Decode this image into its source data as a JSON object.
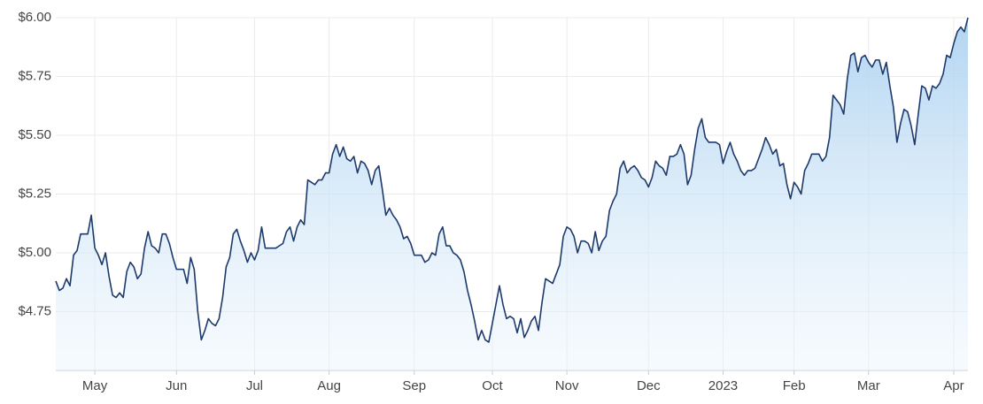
{
  "chart_data": {
    "type": "line",
    "values": [
      4.88,
      4.84,
      4.85,
      4.89,
      4.86,
      4.99,
      5.01,
      5.08,
      5.08,
      5.08,
      5.16,
      5.02,
      4.99,
      4.95,
      5.0,
      4.9,
      4.82,
      4.81,
      4.83,
      4.81,
      4.92,
      4.96,
      4.94,
      4.89,
      4.91,
      5.02,
      5.09,
      5.03,
      5.02,
      5.0,
      5.08,
      5.08,
      5.04,
      4.98,
      4.93,
      4.93,
      4.93,
      4.87,
      4.98,
      4.93,
      4.75,
      4.63,
      4.67,
      4.72,
      4.7,
      4.69,
      4.72,
      4.81,
      4.94,
      4.98,
      5.08,
      5.1,
      5.05,
      5.01,
      4.96,
      5.0,
      4.97,
      5.01,
      5.11,
      5.02,
      5.02,
      5.02,
      5.02,
      5.03,
      5.04,
      5.09,
      5.11,
      5.05,
      5.11,
      5.14,
      5.12,
      5.31,
      5.3,
      5.29,
      5.31,
      5.31,
      5.34,
      5.34,
      5.42,
      5.46,
      5.41,
      5.45,
      5.4,
      5.39,
      5.41,
      5.34,
      5.39,
      5.38,
      5.35,
      5.29,
      5.35,
      5.37,
      5.27,
      5.16,
      5.19,
      5.16,
      5.14,
      5.11,
      5.06,
      5.07,
      5.04,
      4.99,
      4.99,
      4.99,
      4.96,
      4.97,
      5.0,
      4.99,
      5.08,
      5.11,
      5.03,
      5.03,
      5.0,
      4.99,
      4.97,
      4.92,
      4.84,
      4.78,
      4.71,
      4.63,
      4.67,
      4.63,
      4.62,
      4.7,
      4.78,
      4.86,
      4.78,
      4.72,
      4.73,
      4.72,
      4.66,
      4.72,
      4.64,
      4.67,
      4.71,
      4.73,
      4.67,
      4.79,
      4.89,
      4.88,
      4.87,
      4.91,
      4.95,
      5.07,
      5.11,
      5.1,
      5.07,
      5.0,
      5.05,
      5.05,
      5.04,
      5.0,
      5.09,
      5.01,
      5.05,
      5.07,
      5.18,
      5.22,
      5.25,
      5.36,
      5.39,
      5.34,
      5.36,
      5.37,
      5.35,
      5.32,
      5.31,
      5.28,
      5.32,
      5.39,
      5.37,
      5.36,
      5.33,
      5.41,
      5.41,
      5.42,
      5.46,
      5.42,
      5.29,
      5.33,
      5.44,
      5.53,
      5.57,
      5.49,
      5.47,
      5.47,
      5.47,
      5.46,
      5.38,
      5.43,
      5.47,
      5.42,
      5.39,
      5.35,
      5.33,
      5.35,
      5.35,
      5.36,
      5.4,
      5.44,
      5.49,
      5.46,
      5.42,
      5.44,
      5.37,
      5.38,
      5.29,
      5.23,
      5.3,
      5.28,
      5.25,
      5.35,
      5.38,
      5.42,
      5.42,
      5.42,
      5.39,
      5.41,
      5.49,
      5.67,
      5.65,
      5.63,
      5.59,
      5.74,
      5.84,
      5.85,
      5.77,
      5.83,
      5.84,
      5.81,
      5.79,
      5.82,
      5.82,
      5.76,
      5.81,
      5.71,
      5.62,
      5.47,
      5.55,
      5.61,
      5.6,
      5.54,
      5.46,
      5.59,
      5.71,
      5.7,
      5.65,
      5.71,
      5.7,
      5.72,
      5.76,
      5.84,
      5.83,
      5.89,
      5.94,
      5.96,
      5.94,
      6.0
    ],
    "color": "#1d3a6b",
    "xlim": [
      0,
      257
    ],
    "xticks": [
      {
        "value": 11,
        "label": "May"
      },
      {
        "value": 34,
        "label": "Jun"
      },
      {
        "value": 56,
        "label": "Jul"
      },
      {
        "value": 77,
        "label": "Aug"
      },
      {
        "value": 101,
        "label": "Sep"
      },
      {
        "value": 123,
        "label": "Oct"
      },
      {
        "value": 144,
        "label": "Nov"
      },
      {
        "value": 167,
        "label": "Dec"
      },
      {
        "value": 188,
        "label": "2023"
      },
      {
        "value": 208,
        "label": "Feb"
      },
      {
        "value": 229,
        "label": "Mar"
      },
      {
        "value": 253,
        "label": "Apr"
      }
    ],
    "ylim": [
      4.5,
      6.0
    ],
    "yticks": [
      {
        "value": 4.75,
        "label": "$4.75"
      },
      {
        "value": 5.0,
        "label": "$5.00"
      },
      {
        "value": 5.25,
        "label": "$5.25"
      },
      {
        "value": 5.5,
        "label": "$5.50"
      },
      {
        "value": 5.75,
        "label": "$5.75"
      },
      {
        "value": 6.0,
        "label": "$6.00"
      }
    ],
    "grid": true
  }
}
